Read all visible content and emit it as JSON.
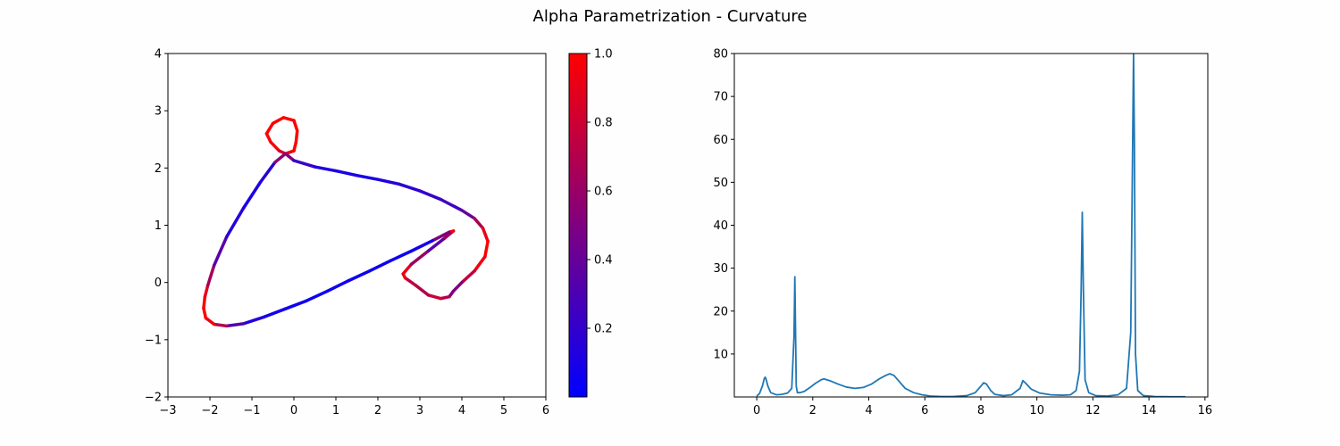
{
  "figure": {
    "title": "Alpha Parametrization - Curvature"
  },
  "chart_data": [
    {
      "type": "line",
      "title": "",
      "xlabel": "",
      "ylabel": "",
      "xlim": [
        -3,
        6
      ],
      "ylim": [
        -2,
        4
      ],
      "xticks": [
        -3,
        -2,
        -1,
        0,
        1,
        2,
        3,
        4,
        5,
        6
      ],
      "yticks": [
        -2,
        -1,
        0,
        1,
        2,
        3,
        4
      ],
      "grid": false,
      "colormap": {
        "from": "#0000ff",
        "to": "#ff0000"
      },
      "line_width": "thick",
      "series": [
        {
          "comment_color": "c is the normalized curvature (0 = blue, 1 = red)",
          "points": [
            [
              -0.2,
              2.25,
              0.9
            ],
            [
              0.0,
              2.3,
              1.0
            ],
            [
              0.05,
              2.45,
              1.0
            ],
            [
              0.08,
              2.65,
              1.0
            ],
            [
              0.0,
              2.83,
              1.0
            ],
            [
              -0.25,
              2.88,
              1.0
            ],
            [
              -0.5,
              2.78,
              1.0
            ],
            [
              -0.65,
              2.6,
              1.0
            ],
            [
              -0.55,
              2.45,
              1.0
            ],
            [
              -0.35,
              2.3,
              0.95
            ],
            [
              -0.2,
              2.25,
              0.7
            ],
            [
              0.0,
              2.13,
              0.3
            ],
            [
              0.5,
              2.02,
              0.15
            ],
            [
              1.0,
              1.95,
              0.1
            ],
            [
              1.5,
              1.87,
              0.1
            ],
            [
              2.0,
              1.8,
              0.1
            ],
            [
              2.5,
              1.72,
              0.15
            ],
            [
              3.0,
              1.6,
              0.2
            ],
            [
              3.5,
              1.45,
              0.2
            ],
            [
              4.0,
              1.26,
              0.3
            ],
            [
              4.3,
              1.12,
              0.5
            ],
            [
              4.5,
              0.95,
              0.85
            ],
            [
              4.62,
              0.72,
              1.0
            ],
            [
              4.55,
              0.45,
              1.0
            ],
            [
              4.3,
              0.2,
              0.9
            ],
            [
              4.0,
              0.0,
              0.6
            ],
            [
              3.8,
              -0.15,
              0.4
            ],
            [
              3.7,
              -0.25,
              0.6
            ],
            [
              3.5,
              -0.28,
              0.8
            ],
            [
              3.2,
              -0.22,
              0.8
            ],
            [
              2.9,
              -0.05,
              0.6
            ],
            [
              2.65,
              0.08,
              0.9
            ],
            [
              2.6,
              0.15,
              1.0
            ],
            [
              2.8,
              0.32,
              0.8
            ],
            [
              3.2,
              0.55,
              0.4
            ],
            [
              3.6,
              0.78,
              0.3
            ],
            [
              3.8,
              0.9,
              1.0
            ],
            [
              3.7,
              0.88,
              0.9
            ],
            [
              3.3,
              0.73,
              0.1
            ],
            [
              2.8,
              0.55,
              0.05
            ],
            [
              2.3,
              0.38,
              0.05
            ],
            [
              1.8,
              0.2,
              0.05
            ],
            [
              1.3,
              0.03,
              0.05
            ],
            [
              0.8,
              -0.15,
              0.05
            ],
            [
              0.3,
              -0.32,
              0.05
            ],
            [
              -0.2,
              -0.46,
              0.05
            ],
            [
              -0.7,
              -0.6,
              0.1
            ],
            [
              -1.2,
              -0.72,
              0.15
            ],
            [
              -1.6,
              -0.76,
              0.5
            ],
            [
              -1.9,
              -0.73,
              0.9
            ],
            [
              -2.1,
              -0.62,
              1.0
            ],
            [
              -2.15,
              -0.45,
              1.0
            ],
            [
              -2.12,
              -0.25,
              1.0
            ],
            [
              -2.05,
              -0.05,
              0.8
            ],
            [
              -1.9,
              0.3,
              0.5
            ],
            [
              -1.6,
              0.8,
              0.2
            ],
            [
              -1.2,
              1.3,
              0.1
            ],
            [
              -0.8,
              1.75,
              0.1
            ],
            [
              -0.45,
              2.1,
              0.2
            ],
            [
              -0.2,
              2.25,
              0.9
            ]
          ]
        }
      ],
      "colorbar": {
        "range": [
          0,
          1
        ],
        "ticks": [
          0.2,
          0.4,
          0.6,
          0.8,
          1.0
        ],
        "tick_labels": [
          "0.2",
          "0.4",
          "0.6",
          "0.8",
          "1.0"
        ]
      }
    },
    {
      "type": "line",
      "title": "",
      "xlabel": "",
      "ylabel": "",
      "xlim": [
        -0.8,
        16.1
      ],
      "ylim": [
        0,
        80
      ],
      "xticks": [
        0,
        2,
        4,
        6,
        8,
        10,
        12,
        14,
        16
      ],
      "yticks": [
        10,
        20,
        30,
        40,
        50,
        60,
        70,
        80
      ],
      "grid": false,
      "series": [
        {
          "color": "#1f77b4",
          "x": [
            0,
            0.1,
            0.2,
            0.27,
            0.3,
            0.33,
            0.4,
            0.5,
            0.7,
            0.9,
            1.1,
            1.25,
            1.33,
            1.36,
            1.38,
            1.41,
            1.45,
            1.55,
            1.7,
            1.9,
            2.1,
            2.3,
            2.4,
            2.6,
            2.9,
            3.2,
            3.5,
            3.8,
            4.1,
            4.4,
            4.6,
            4.75,
            4.9,
            5.1,
            5.3,
            5.6,
            5.9,
            6.2,
            6.6,
            7.0,
            7.5,
            7.8,
            8.0,
            8.1,
            8.2,
            8.35,
            8.5,
            8.8,
            9.1,
            9.4,
            9.5,
            9.6,
            9.8,
            10.1,
            10.5,
            10.9,
            11.2,
            11.4,
            11.52,
            11.58,
            11.62,
            11.66,
            11.72,
            11.85,
            12.1,
            12.5,
            12.9,
            13.2,
            13.35,
            13.42,
            13.45,
            13.48,
            13.52,
            13.6,
            13.8,
            14.2,
            14.8,
            15.3
          ],
          "y": [
            0.2,
            0.8,
            2.5,
            4.3,
            4.6,
            4.2,
            2.5,
            1.0,
            0.5,
            0.6,
            0.9,
            2.0,
            14,
            28,
            18,
            2.5,
            1.0,
            1.0,
            1.3,
            2.2,
            3.2,
            4.0,
            4.2,
            3.8,
            3.0,
            2.3,
            2.0,
            2.2,
            3.0,
            4.3,
            5.0,
            5.4,
            5.0,
            3.5,
            2.0,
            1.0,
            0.5,
            0.2,
            0.1,
            0.1,
            0.3,
            1.0,
            2.5,
            3.3,
            3.0,
            1.5,
            0.6,
            0.3,
            0.5,
            2.0,
            3.8,
            3.2,
            1.8,
            0.9,
            0.5,
            0.4,
            0.5,
            1.5,
            6,
            25,
            43,
            25,
            4,
            1.0,
            0.3,
            0.2,
            0.5,
            2.0,
            15,
            60,
            80,
            60,
            10,
            1.5,
            0.3,
            0.1,
            0.05,
            0.05
          ]
        }
      ]
    }
  ]
}
